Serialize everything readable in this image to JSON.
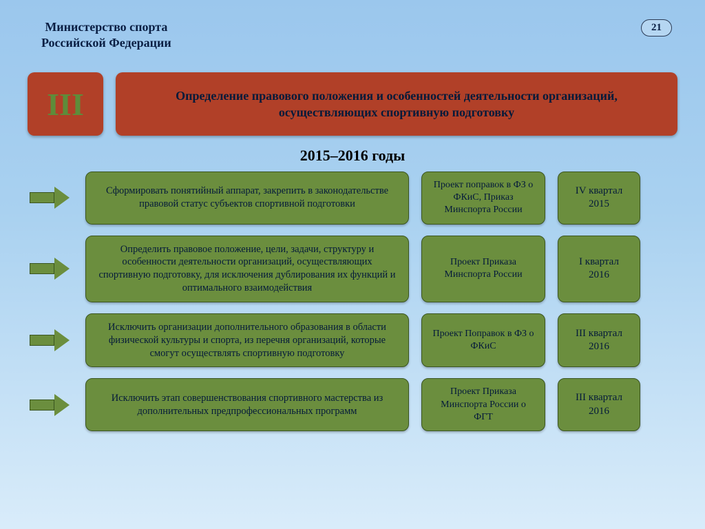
{
  "colors": {
    "bg_top": "#9bc7ed",
    "bg_bottom": "#d9ecfa",
    "card_red": "#b14028",
    "card_green": "#6b8e3e",
    "card_border": "#3a5520",
    "text_dark": "#041a3a",
    "roman_text": "#5e8c3a"
  },
  "header": {
    "ministry_line1": "Министерство спорта",
    "ministry_line2": "Российской Федерации",
    "page_number": "21"
  },
  "section": {
    "roman": "III",
    "title": "Определение правового положения и особенностей деятельности организаций, осуществляющих спортивную подготовку"
  },
  "years": "2015–2016 годы",
  "rows": [
    {
      "task": "Сформировать понятийный аппарат, закрепить в законодательстве правовой статус субъектов спортивной подготовки",
      "doc": "Проект поправок в ФЗ о ФКиС, Приказ Минспорта России",
      "time": "IV квартал 2015"
    },
    {
      "task": "Определить правовое положение, цели, задачи, структуру и особенности деятельности организаций, осуществляющих спортивную подготовку, для исключения дублирования их функций и оптимального взаимодействия",
      "doc": "Проект Приказа Минспорта России",
      "time": "I квартал 2016"
    },
    {
      "task": "Исключить организации дополнительного образования в области физической культуры и спорта, из перечня организаций, которые смогут осуществлять спортивную подготовку",
      "doc": "Проект Поправок в ФЗ о ФКиС",
      "time": "III квартал 2016"
    },
    {
      "task": "Исключить этап совершенствования спортивного мастерства из дополнительных предпрофессиональных программ",
      "doc": "Проект Приказа Минспорта России о ФГТ",
      "time": "III квартал 2016"
    }
  ]
}
